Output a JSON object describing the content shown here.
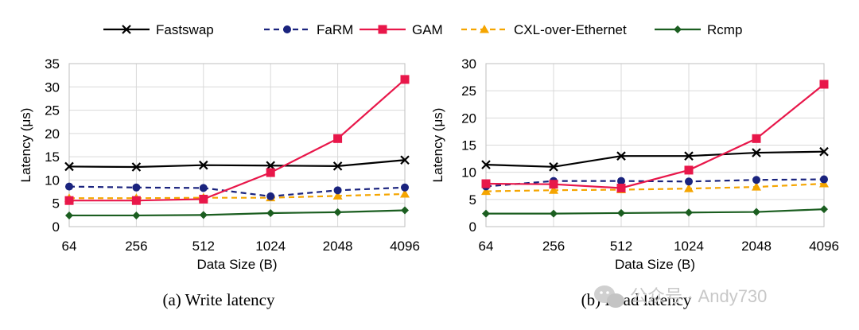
{
  "legend": [
    {
      "name": "Fastswap",
      "color": "#000000",
      "dash": "",
      "marker": "x"
    },
    {
      "name": "FaRM",
      "color": "#1a237e",
      "dash": "7,5",
      "marker": "circle"
    },
    {
      "name": "GAM",
      "color": "#e8174a",
      "dash": "",
      "marker": "square"
    },
    {
      "name": "CXL-over-Ethernet",
      "color": "#f5a500",
      "dash": "7,5",
      "marker": "triangle"
    },
    {
      "name": "Rcmp",
      "color": "#1b5e20",
      "dash": "",
      "marker": "diamond"
    }
  ],
  "chart_data": [
    {
      "type": "line",
      "caption": "(a)  Write latency",
      "xlabel": "Data Size (B)",
      "ylabel": "Latency (μs)",
      "categories": [
        "64",
        "256",
        "512",
        "1024",
        "2048",
        "4096"
      ],
      "ylim": [
        0,
        35
      ],
      "yticks": [
        0,
        5,
        10,
        15,
        20,
        25,
        30,
        35
      ],
      "grid": true,
      "series": [
        {
          "name": "Fastswap",
          "values": [
            12.9,
            12.8,
            13.2,
            13.1,
            13.0,
            14.3
          ]
        },
        {
          "name": "FaRM",
          "values": [
            8.6,
            8.4,
            8.3,
            6.5,
            7.8,
            8.4
          ]
        },
        {
          "name": "GAM",
          "values": [
            5.6,
            5.6,
            5.9,
            11.6,
            18.9,
            31.6
          ]
        },
        {
          "name": "CXL-over-Ethernet",
          "values": [
            6.1,
            6.1,
            6.2,
            6.2,
            6.6,
            7.0
          ]
        },
        {
          "name": "Rcmp",
          "values": [
            2.4,
            2.4,
            2.5,
            2.9,
            3.1,
            3.5
          ]
        }
      ]
    },
    {
      "type": "line",
      "caption": "(b)  Read latency",
      "xlabel": "Data Size (B)",
      "ylabel": "Latency (μs)",
      "categories": [
        "64",
        "256",
        "512",
        "1024",
        "2048",
        "4096"
      ],
      "ylim": [
        0,
        30
      ],
      "yticks": [
        0,
        5,
        10,
        15,
        20,
        25,
        30
      ],
      "grid": true,
      "series": [
        {
          "name": "Fastswap",
          "values": [
            11.4,
            11.0,
            13.0,
            13.0,
            13.6,
            13.8
          ]
        },
        {
          "name": "FaRM",
          "values": [
            7.4,
            8.4,
            8.4,
            8.3,
            8.6,
            8.7
          ]
        },
        {
          "name": "GAM",
          "values": [
            7.9,
            7.8,
            7.1,
            10.4,
            16.2,
            26.2
          ]
        },
        {
          "name": "CXL-over-Ethernet",
          "values": [
            6.5,
            6.7,
            6.8,
            7.0,
            7.3,
            7.9
          ]
        },
        {
          "name": "Rcmp",
          "values": [
            2.4,
            2.4,
            2.5,
            2.6,
            2.7,
            3.2
          ]
        }
      ]
    }
  ],
  "watermark": "公众号 · Andy730"
}
